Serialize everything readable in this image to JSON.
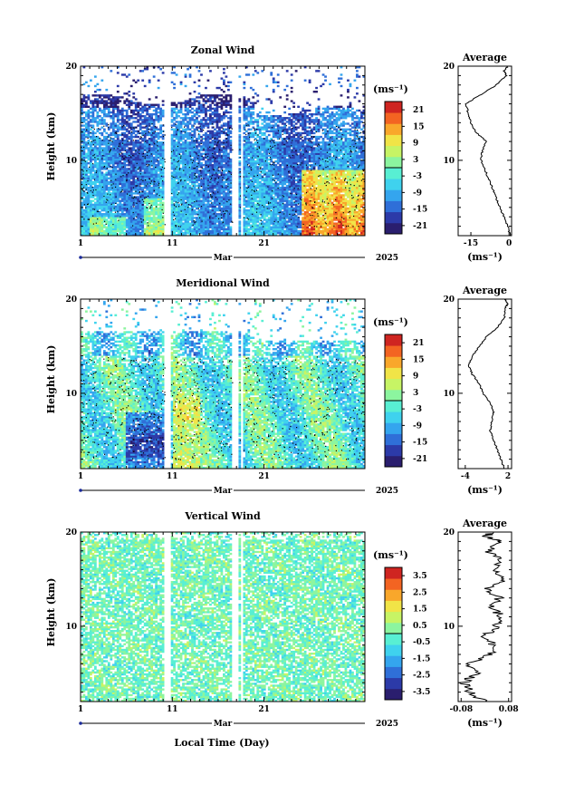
{
  "chart_data": [
    {
      "type": "heatmap",
      "title": "Zonal Wind",
      "ylabel": "Height (km)",
      "x_ticks": [
        "1",
        "11",
        "21"
      ],
      "x_month": "Mar",
      "x_year": "2025",
      "xlim": [
        1,
        32
      ],
      "y_ticks": [
        "20",
        "10"
      ],
      "ylim": [
        2,
        20
      ],
      "colorbar": {
        "unit": "(ms⁻¹)",
        "ticks": [
          "21",
          "15",
          "9",
          "3",
          "-3",
          "-9",
          "-15",
          "-21"
        ],
        "range": [
          -24,
          24
        ]
      },
      "average": {
        "title": "Average",
        "x_ticks": [
          "-15",
          "0"
        ],
        "xlim": [
          -20,
          1
        ],
        "xlabel": "(ms⁻¹)",
        "height_km": [
          2,
          3,
          4,
          5,
          6,
          7,
          8,
          9,
          10,
          11,
          12,
          13,
          14,
          15,
          16,
          17,
          18,
          19,
          19.5,
          20
        ],
        "values": [
          0.5,
          -0.5,
          -2,
          -3.5,
          -5,
          -6.5,
          -8,
          -9.5,
          -11,
          -10.5,
          -9,
          -13,
          -15,
          -16,
          -17,
          -11,
          -5,
          -1,
          -2,
          -0.5
        ]
      },
      "blank_days": [
        [
          10.2,
          10.8
        ],
        [
          17.6,
          18.2
        ],
        [
          18.4,
          18.7
        ]
      ]
    },
    {
      "type": "heatmap",
      "title": "Meridional Wind",
      "ylabel": "Height (km)",
      "x_ticks": [
        "1",
        "11",
        "21"
      ],
      "x_month": "Mar",
      "x_year": "2025",
      "xlim": [
        1,
        32
      ],
      "y_ticks": [
        "20",
        "10"
      ],
      "ylim": [
        2,
        20
      ],
      "colorbar": {
        "unit": "(ms⁻¹)",
        "ticks": [
          "21",
          "15",
          "9",
          "3",
          "-3",
          "-9",
          "-15",
          "-21"
        ],
        "range": [
          -24,
          24
        ]
      },
      "average": {
        "title": "Average",
        "x_ticks": [
          "-4",
          "2"
        ],
        "xlim": [
          -5,
          2.5
        ],
        "xlabel": "(ms⁻¹)",
        "height_km": [
          2,
          3,
          4,
          5,
          6,
          7,
          8,
          9,
          10,
          11,
          12,
          13,
          14,
          15,
          16,
          17,
          18,
          19,
          19.5,
          20
        ],
        "values": [
          1.5,
          1.0,
          0.5,
          0.0,
          -0.5,
          -0.3,
          0.0,
          -0.5,
          -1.5,
          -2.0,
          -3.0,
          -3.5,
          -3.0,
          -2.0,
          -1.0,
          0.5,
          1.5,
          1.5,
          2.0,
          1.5
        ]
      },
      "blank_days": [
        [
          10.2,
          10.8
        ],
        [
          17.6,
          18.2
        ],
        [
          18.4,
          18.7
        ]
      ]
    },
    {
      "type": "heatmap",
      "title": "Vertical Wind",
      "ylabel": "Height (km)",
      "x_ticks": [
        "1",
        "11",
        "21"
      ],
      "x_month": "Mar",
      "x_year": "2025",
      "xlim": [
        1,
        32
      ],
      "y_ticks": [
        "20",
        "10"
      ],
      "ylim": [
        2,
        20
      ],
      "colorbar": {
        "unit": "(ms⁻¹)",
        "ticks": [
          "3.5",
          "2.5",
          "1.5",
          "0.5",
          "-0.5",
          "-1.5",
          "-2.5",
          "-3.5"
        ],
        "range": [
          -4,
          4
        ]
      },
      "average": {
        "title": "Average",
        "x_ticks": [
          "-0.08",
          "0.08"
        ],
        "xlim": [
          -0.09,
          0.09
        ],
        "xlabel": "(ms⁻¹)",
        "height_km": [
          2,
          3,
          4,
          5,
          6,
          7,
          8,
          9,
          10,
          11,
          12,
          13,
          14,
          15,
          16,
          17,
          18,
          19,
          19.5,
          20
        ],
        "values": [
          0.0,
          -0.05,
          -0.07,
          -0.03,
          -0.05,
          0.02,
          0.03,
          0.0,
          0.04,
          0.06,
          0.02,
          0.05,
          0.0,
          0.07,
          0.02,
          0.06,
          0.01,
          0.05,
          0.0,
          0.03
        ]
      },
      "blank_days": [
        [
          10.2,
          10.8
        ],
        [
          17.6,
          18.2
        ],
        [
          18.4,
          18.7
        ]
      ]
    }
  ],
  "xlabel": "Local Time (Day)",
  "colors": {
    "scale": [
      "#2a1e6e",
      "#2c3aa8",
      "#2f6fd8",
      "#34a5ee",
      "#3fd2ee",
      "#58efd3",
      "#8cf59f",
      "#c7f465",
      "#f1e447",
      "#f9a72b",
      "#f36422",
      "#cf2521"
    ]
  }
}
